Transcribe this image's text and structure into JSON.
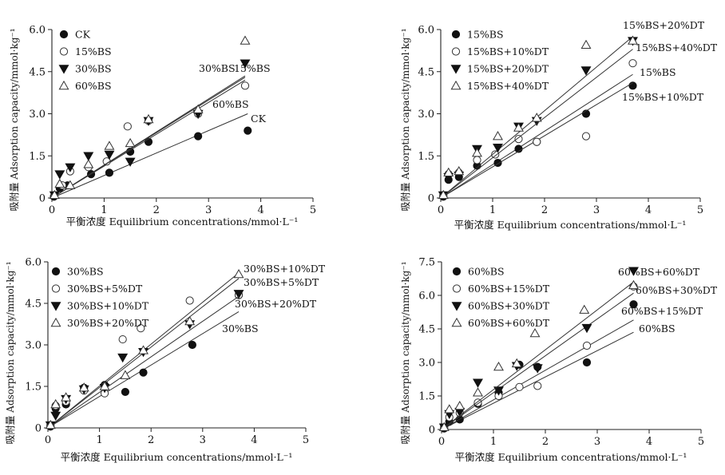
{
  "chart_data": [
    {
      "type": "scatter",
      "xlabel": "平衡浓度 Equilibrium concentrations/mmol·L⁻¹",
      "ylabel": "吸附量 Adsorption capacity/mmol·kg⁻¹",
      "xlim": [
        0,
        5
      ],
      "ylim": [
        0,
        6
      ],
      "xticks": [
        "0",
        "1",
        "2",
        "3",
        "4",
        "5"
      ],
      "yticks": [
        "0",
        "1.5",
        "3.0",
        "4.5",
        "6.0"
      ],
      "series": [
        {
          "name": "CK",
          "marker": "filled-circle",
          "x": [
            0.04,
            0.15,
            0.3,
            0.75,
            1.1,
            1.5,
            1.85,
            2.8,
            3.75
          ],
          "y": [
            0.05,
            0.35,
            0.45,
            0.85,
            0.9,
            1.65,
            2.0,
            2.2,
            2.4
          ],
          "fit": [
            [
              0,
              0
            ],
            [
              3.75,
              3.0
            ]
          ],
          "fit_label": "CK"
        },
        {
          "name": "15%BS",
          "marker": "open-circle",
          "x": [
            0.05,
            0.2,
            0.35,
            0.7,
            1.05,
            1.45,
            1.85,
            2.8,
            3.7
          ],
          "y": [
            0.1,
            0.45,
            0.95,
            1.1,
            1.3,
            2.55,
            2.75,
            3.0,
            4.0
          ],
          "fit": [
            [
              0,
              0
            ],
            [
              3.7,
              4.2
            ]
          ],
          "fit_label": "15%BS"
        },
        {
          "name": "30%BS",
          "marker": "filled-triangle-down",
          "x": [
            0.05,
            0.15,
            0.35,
            0.7,
            1.1,
            1.5,
            1.85,
            2.8,
            3.7
          ],
          "y": [
            0.1,
            0.85,
            1.1,
            1.5,
            1.55,
            1.3,
            2.75,
            3.0,
            4.8
          ],
          "fit": [
            [
              0,
              0
            ],
            [
              3.7,
              4.3
            ]
          ],
          "fit_label": "30%BS"
        },
        {
          "name": "60%BS",
          "marker": "open-triangle-up",
          "x": [
            0.05,
            0.15,
            0.35,
            0.7,
            1.1,
            1.5,
            1.85,
            2.8,
            3.7
          ],
          "y": [
            0.1,
            0.5,
            0.45,
            1.2,
            1.85,
            1.95,
            2.8,
            3.15,
            5.6
          ],
          "fit": [
            [
              0,
              0
            ],
            [
              3.7,
              4.35
            ]
          ],
          "fit_label": "60%BS"
        }
      ]
    },
    {
      "type": "scatter",
      "xlabel": "平衡浓度 Equilibrium concentrations/mmol·L⁻¹",
      "ylabel": "吸附量 Adsorption capacity/mmol·kg⁻¹",
      "xlim": [
        0,
        5
      ],
      "ylim": [
        0,
        6
      ],
      "xticks": [
        "0",
        "1",
        "2",
        "3",
        "4",
        "5"
      ],
      "yticks": [
        "0",
        "1.5",
        "3.0",
        "4.5",
        "6.0"
      ],
      "series": [
        {
          "name": "15%BS",
          "marker": "filled-circle",
          "x": [
            0.05,
            0.15,
            0.35,
            0.7,
            1.1,
            1.5,
            1.85,
            2.8,
            3.7
          ],
          "y": [
            0.05,
            0.65,
            0.75,
            1.15,
            1.25,
            1.75,
            2.0,
            3.0,
            4.0
          ],
          "fit": [
            [
              0,
              0
            ],
            [
              3.7,
              4.4
            ]
          ],
          "fit_label": "15%BS"
        },
        {
          "name": "15%BS+10%DT",
          "marker": "open-circle",
          "x": [
            0.05,
            0.15,
            0.35,
            0.7,
            1.05,
            1.5,
            1.85,
            2.8,
            3.7
          ],
          "y": [
            0.1,
            0.85,
            0.9,
            1.35,
            1.55,
            2.1,
            2.0,
            2.2,
            4.8
          ],
          "fit": [
            [
              0,
              0
            ],
            [
              3.7,
              4.1
            ]
          ],
          "fit_label": "15%BS+10%DT"
        },
        {
          "name": "15%BS+20%DT",
          "marker": "filled-triangle-down",
          "x": [
            0.05,
            0.15,
            0.35,
            0.7,
            1.1,
            1.5,
            1.85,
            2.8,
            3.7
          ],
          "y": [
            0.1,
            0.75,
            0.8,
            1.75,
            1.8,
            2.55,
            2.75,
            4.55,
            5.6
          ],
          "fit": [
            [
              0,
              0
            ],
            [
              3.7,
              5.75
            ]
          ],
          "fit_label": "15%BS+20%DT"
        },
        {
          "name": "15%BS+40%DT",
          "marker": "open-triangle-up",
          "x": [
            0.05,
            0.15,
            0.35,
            0.7,
            1.1,
            1.5,
            1.85,
            2.8,
            3.7
          ],
          "y": [
            0.1,
            0.9,
            0.95,
            1.6,
            2.2,
            2.5,
            2.85,
            5.45,
            5.6
          ],
          "fit": [
            [
              0,
              0
            ],
            [
              3.7,
              5.3
            ]
          ],
          "fit_label": "15%BS+40%DT"
        }
      ]
    },
    {
      "type": "scatter",
      "xlabel": "平衡浓度 Equilibrium concentrations/mmol·L⁻¹",
      "ylabel": "吸附量 Adsorption capacity/mmol·kg⁻¹",
      "xlim": [
        0,
        5
      ],
      "ylim": [
        0,
        6
      ],
      "xticks": [
        "0",
        "1",
        "2",
        "3",
        "4",
        "5"
      ],
      "yticks": [
        "0",
        "1.5",
        "3.0",
        "4.5",
        "6.0"
      ],
      "series": [
        {
          "name": "30%BS",
          "marker": "filled-circle",
          "x": [
            0.05,
            0.15,
            0.35,
            0.7,
            1.1,
            1.5,
            1.85,
            2.8,
            3.7
          ],
          "y": [
            0.05,
            0.7,
            0.85,
            1.45,
            1.55,
            1.3,
            2.0,
            3.0,
            4.8
          ],
          "fit": [
            [
              0,
              0
            ],
            [
              3.7,
              4.2
            ]
          ],
          "fit_label": "30%BS"
        },
        {
          "name": "30%BS+5%DT",
          "marker": "open-circle",
          "x": [
            0.05,
            0.15,
            0.35,
            0.7,
            1.1,
            1.45,
            1.8,
            2.75,
            3.7
          ],
          "y": [
            0.1,
            0.8,
            0.95,
            1.35,
            1.25,
            3.2,
            3.6,
            4.6,
            4.8
          ],
          "fit": [
            [
              0,
              0
            ],
            [
              3.7,
              5.4
            ]
          ],
          "fit_label": "30%BS+5%DT"
        },
        {
          "name": "30%BS+10%DT",
          "marker": "filled-triangle-down",
          "x": [
            0.05,
            0.15,
            0.35,
            0.7,
            1.1,
            1.45,
            1.85,
            2.75,
            3.7
          ],
          "y": [
            0.1,
            0.45,
            1.05,
            1.4,
            1.45,
            2.55,
            2.75,
            3.75,
            4.85
          ],
          "fit": [
            [
              0,
              0
            ],
            [
              3.7,
              5.6
            ]
          ],
          "fit_label": "30%BS+10%DT"
        },
        {
          "name": "30%BS+20%DT",
          "marker": "open-triangle-up",
          "x": [
            0.05,
            0.15,
            0.35,
            0.7,
            1.1,
            1.5,
            1.85,
            2.75,
            3.7
          ],
          "y": [
            0.1,
            0.85,
            1.1,
            1.45,
            1.5,
            1.9,
            2.8,
            3.85,
            5.55
          ],
          "fit": [
            [
              0,
              0
            ],
            [
              3.7,
              4.75
            ]
          ],
          "fit_label": "30%BS+20%DT"
        }
      ]
    },
    {
      "type": "scatter",
      "xlabel": "平衡浓度 Equilibrium concentrations/mmol·L⁻¹",
      "ylabel": "吸附量 Adsorption capacity/mmol·kg⁻¹",
      "xlim": [
        0,
        5
      ],
      "ylim": [
        0,
        7.5
      ],
      "xticks": [
        "0",
        "1",
        "2",
        "3",
        "4",
        "5"
      ],
      "yticks": [
        "0",
        "1.5",
        "3.0",
        "4.5",
        "6.0",
        "7.5"
      ],
      "series": [
        {
          "name": "60%BS",
          "marker": "filled-circle",
          "x": [
            0.05,
            0.15,
            0.35,
            0.7,
            1.1,
            1.5,
            1.85,
            2.8,
            3.7
          ],
          "y": [
            0.05,
            0.35,
            0.45,
            1.15,
            1.65,
            2.9,
            2.8,
            3.0,
            5.6
          ],
          "fit": [
            [
              0,
              0
            ],
            [
              3.7,
              4.35
            ]
          ],
          "fit_label": "60%BS"
        },
        {
          "name": "60%BS+15%DT",
          "marker": "open-circle",
          "x": [
            0.05,
            0.15,
            0.35,
            0.7,
            1.1,
            1.5,
            1.85,
            2.8,
            3.7
          ],
          "y": [
            0.1,
            0.55,
            0.75,
            1.2,
            1.5,
            1.9,
            1.95,
            3.75,
            6.4
          ],
          "fit": [
            [
              0,
              0
            ],
            [
              3.7,
              4.9
            ]
          ],
          "fit_label": "60%BS+15%DT"
        },
        {
          "name": "60%BS+30%DT",
          "marker": "filled-triangle-down",
          "x": [
            0.05,
            0.15,
            0.35,
            0.7,
            1.1,
            1.45,
            1.85,
            2.8,
            3.7
          ],
          "y": [
            0.1,
            0.7,
            0.8,
            2.1,
            1.75,
            2.85,
            2.75,
            4.55,
            7.1
          ],
          "fit": [
            [
              0,
              0
            ],
            [
              3.7,
              6.1
            ]
          ],
          "fit_label": "60%BS+30%DT"
        },
        {
          "name": "60%BS+60%DT",
          "marker": "open-triangle-up",
          "x": [
            0.05,
            0.15,
            0.35,
            0.7,
            1.1,
            1.45,
            1.8,
            2.75,
            3.7
          ],
          "y": [
            0.1,
            0.9,
            1.05,
            1.65,
            2.8,
            2.95,
            4.3,
            5.35,
            6.45
          ],
          "fit": [
            [
              0,
              0
            ],
            [
              3.7,
              6.6
            ]
          ],
          "fit_label": "60%BS+60%DT"
        }
      ]
    }
  ]
}
